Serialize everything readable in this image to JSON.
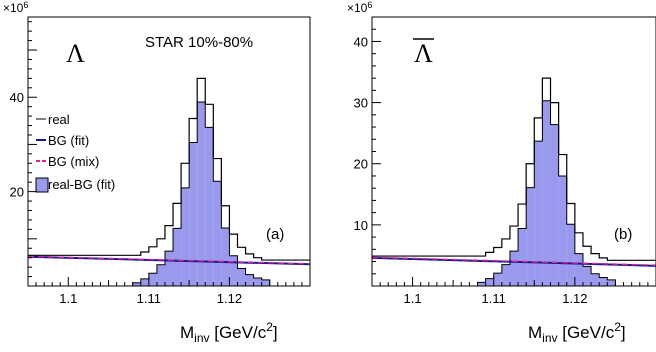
{
  "chart_data": [
    {
      "type": "bar",
      "panel_label": "(a)",
      "particle": "Λ",
      "overline": false,
      "annotation": "STAR 10%-80%",
      "exponent_label": "×10",
      "exponent_power": "6",
      "xlabel_main": "M",
      "xlabel_sub": "inv",
      "xlabel_unit_pre": " [GeV/c",
      "xlabel_unit_sup": "2",
      "xlabel_unit_post": "]",
      "xlim": [
        1.095,
        1.13
      ],
      "ylim": [
        0,
        57
      ],
      "xticks": [
        "1.1",
        "1.11",
        "1.12"
      ],
      "xtick_values": [
        1.1,
        1.11,
        1.12
      ],
      "yticks": [
        "20",
        "40"
      ],
      "ytick_values": [
        20,
        40
      ],
      "bin_edges": [
        1.108,
        1.109,
        1.11,
        1.111,
        1.112,
        1.113,
        1.114,
        1.115,
        1.116,
        1.117,
        1.118,
        1.119,
        1.12,
        1.121,
        1.122,
        1.123,
        1.124,
        1.125
      ],
      "series": [
        {
          "name": "real",
          "type": "step",
          "color": "#000000",
          "values": [
            6.5,
            7.2,
            8.3,
            10.0,
            12.8,
            17.5,
            26.0,
            35.5,
            44.0,
            38.5,
            27.0,
            17.0,
            11.0,
            8.2,
            6.8,
            6.0,
            5.5
          ]
        },
        {
          "name": "BG (fit)",
          "type": "line",
          "color": "#1a1a8c",
          "x": [
            1.095,
            1.13
          ],
          "y": [
            6.2,
            4.6
          ]
        },
        {
          "name": "BG (mix)",
          "type": "line",
          "color": "#e020a0",
          "dashed": true,
          "x": [
            1.095,
            1.13
          ],
          "y": [
            6.3,
            4.7
          ]
        },
        {
          "name": "real-BG (fit)",
          "type": "filled-step",
          "color": "#9999ee",
          "values": [
            0.7,
            1.5,
            2.7,
            4.5,
            7.4,
            12.2,
            20.8,
            30.4,
            39.0,
            33.6,
            22.2,
            12.3,
            6.4,
            3.7,
            2.4,
            1.7,
            1.3
          ]
        }
      ],
      "legend_position": "left"
    },
    {
      "type": "bar",
      "panel_label": "(b)",
      "particle": "Λ",
      "overline": true,
      "exponent_label": "×10",
      "exponent_power": "6",
      "xlabel_main": "M",
      "xlabel_sub": "inv",
      "xlabel_unit_pre": " [GeV/c",
      "xlabel_unit_sup": "2",
      "xlabel_unit_post": "]",
      "xlim": [
        1.095,
        1.13
      ],
      "ylim": [
        0,
        44
      ],
      "xticks": [
        "1.1",
        "1.11",
        "1.12"
      ],
      "xtick_values": [
        1.1,
        1.11,
        1.12
      ],
      "yticks": [
        "10",
        "20",
        "30",
        "40"
      ],
      "ytick_values": [
        10,
        20,
        30,
        40
      ],
      "bin_edges": [
        1.108,
        1.109,
        1.11,
        1.111,
        1.112,
        1.113,
        1.114,
        1.115,
        1.116,
        1.117,
        1.118,
        1.119,
        1.12,
        1.121,
        1.122,
        1.123,
        1.124,
        1.125
      ],
      "series": [
        {
          "name": "real",
          "type": "step",
          "color": "#000000",
          "values": [
            4.9,
            5.5,
            6.3,
            7.7,
            9.8,
            13.4,
            20.0,
            27.5,
            34.0,
            30.0,
            21.5,
            13.5,
            8.7,
            6.5,
            5.3,
            4.6,
            4.2
          ]
        },
        {
          "name": "BG (fit)",
          "type": "line",
          "color": "#1a1a8c",
          "x": [
            1.095,
            1.13
          ],
          "y": [
            4.6,
            3.3
          ]
        },
        {
          "name": "BG (mix)",
          "type": "line",
          "color": "#e020a0",
          "dashed": true,
          "x": [
            1.095,
            1.13
          ],
          "y": [
            4.7,
            3.4
          ]
        },
        {
          "name": "real-BG (fit)",
          "type": "filled-step",
          "color": "#9999ee",
          "values": [
            0.6,
            1.2,
            2.1,
            3.5,
            5.7,
            9.4,
            16.1,
            23.7,
            30.3,
            26.4,
            18.0,
            10.1,
            5.3,
            3.2,
            2.0,
            1.4,
            1.0
          ]
        }
      ]
    }
  ]
}
